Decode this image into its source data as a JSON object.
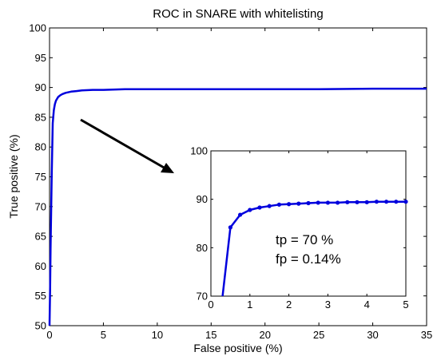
{
  "chart_data": [
    {
      "type": "line",
      "title": "ROC in SNARE with whitelisting",
      "xlabel": "False positive (%)",
      "ylabel": "True positive (%)",
      "xlim": [
        0,
        35
      ],
      "ylim": [
        50,
        100
      ],
      "xticks": [
        0,
        5,
        10,
        15,
        20,
        25,
        30,
        35
      ],
      "yticks": [
        50,
        55,
        60,
        65,
        70,
        75,
        80,
        85,
        90,
        95,
        100
      ],
      "grid": false,
      "line_color": "#0000dd",
      "series": [
        {
          "x": [
            0.0,
            0.05,
            0.1,
            0.2,
            0.3,
            0.4,
            0.5,
            0.6,
            0.8,
            1.0,
            1.2,
            1.5,
            2.0,
            2.5,
            3.0,
            4.0,
            5.0,
            7.0,
            10.0,
            15.0,
            20.0,
            25.0,
            30.0,
            35.0
          ],
          "y": [
            50.0,
            56.0,
            63.0,
            75.0,
            84.0,
            86.2,
            87.2,
            87.8,
            88.4,
            88.7,
            88.9,
            89.1,
            89.3,
            89.4,
            89.5,
            89.6,
            89.6,
            89.7,
            89.7,
            89.7,
            89.7,
            89.7,
            89.8,
            89.8
          ]
        }
      ]
    },
    {
      "type": "line",
      "xlim": [
        0,
        5
      ],
      "ylim": [
        70,
        100
      ],
      "xticks": [
        0,
        1,
        2,
        3,
        4,
        5
      ],
      "yticks": [
        70,
        80,
        90,
        100
      ],
      "markers": true,
      "line_color": "#0000dd",
      "series": [
        {
          "x": [
            0.3,
            0.5,
            0.75,
            1.0,
            1.25,
            1.5,
            1.75,
            2.0,
            2.25,
            2.5,
            2.75,
            3.0,
            3.25,
            3.5,
            3.75,
            4.0,
            4.25,
            4.5,
            4.75,
            5.0
          ],
          "y": [
            70.0,
            84.2,
            86.8,
            87.8,
            88.3,
            88.6,
            88.9,
            89.0,
            89.1,
            89.2,
            89.3,
            89.3,
            89.3,
            89.4,
            89.4,
            89.4,
            89.5,
            89.5,
            89.5,
            89.5
          ]
        }
      ],
      "annotations": [
        "tp = 70 %",
        "fp = 0.14%"
      ]
    }
  ]
}
